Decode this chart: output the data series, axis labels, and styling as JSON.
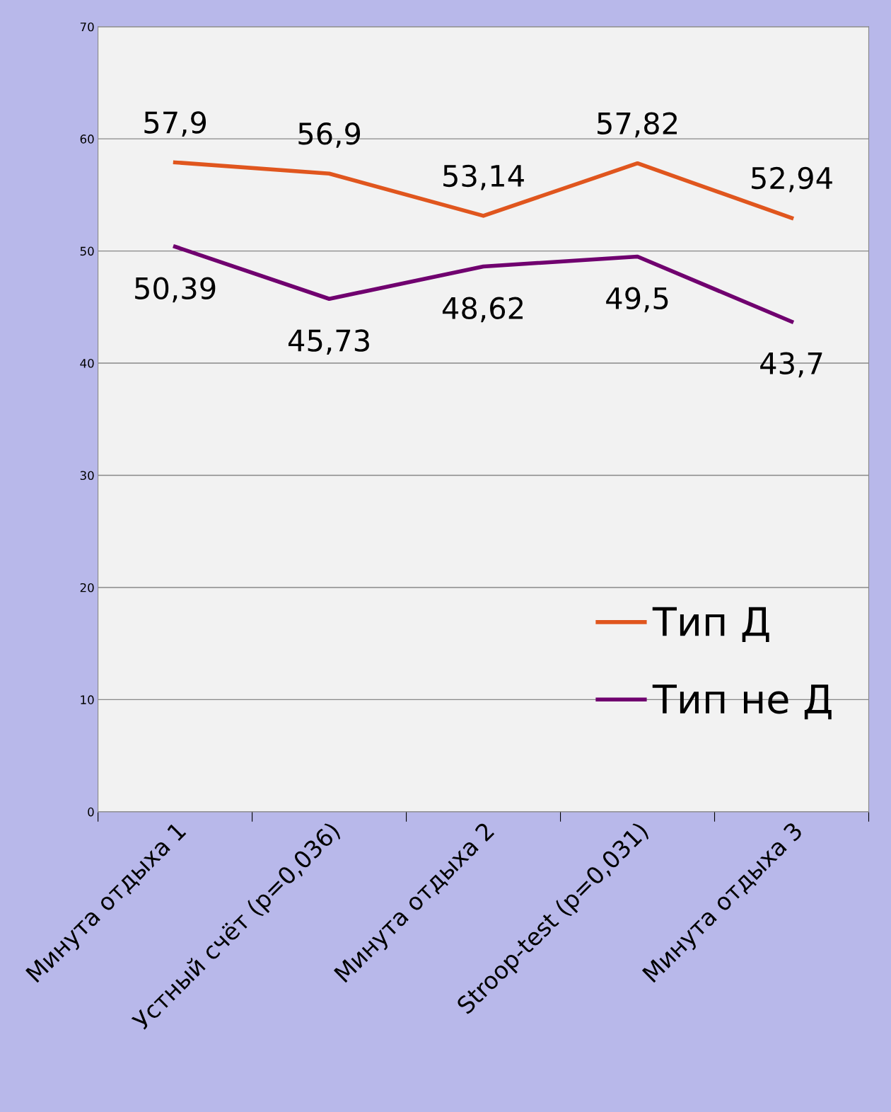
{
  "chart_data": {
    "type": "line",
    "categories": [
      "Минута отдыха 1",
      "Устный счёт (p=0,036)",
      "Минута отдыха 2",
      "Stroop-test (p=0,031)",
      "Минута отдыха 3"
    ],
    "series": [
      {
        "name": "Тип Д",
        "color": "#e0561e",
        "values": [
          57.9,
          56.9,
          53.14,
          57.82,
          52.94
        ],
        "value_labels": [
          "57,9",
          "56,9",
          "53,14",
          "57,82",
          "52,94"
        ]
      },
      {
        "name": "Тип не Д",
        "color": "#70006f",
        "values": [
          50.39,
          45.73,
          48.62,
          49.5,
          43.7
        ],
        "value_labels": [
          "50,39",
          "45,73",
          "48,62",
          "49,5",
          "43,7"
        ]
      }
    ],
    "ylim": [
      0,
      70
    ],
    "yticks": [
      0,
      10,
      20,
      30,
      40,
      50,
      60,
      70
    ],
    "grid": "y",
    "legend": "bottom right",
    "marker": "none",
    "line_style": "solid"
  }
}
